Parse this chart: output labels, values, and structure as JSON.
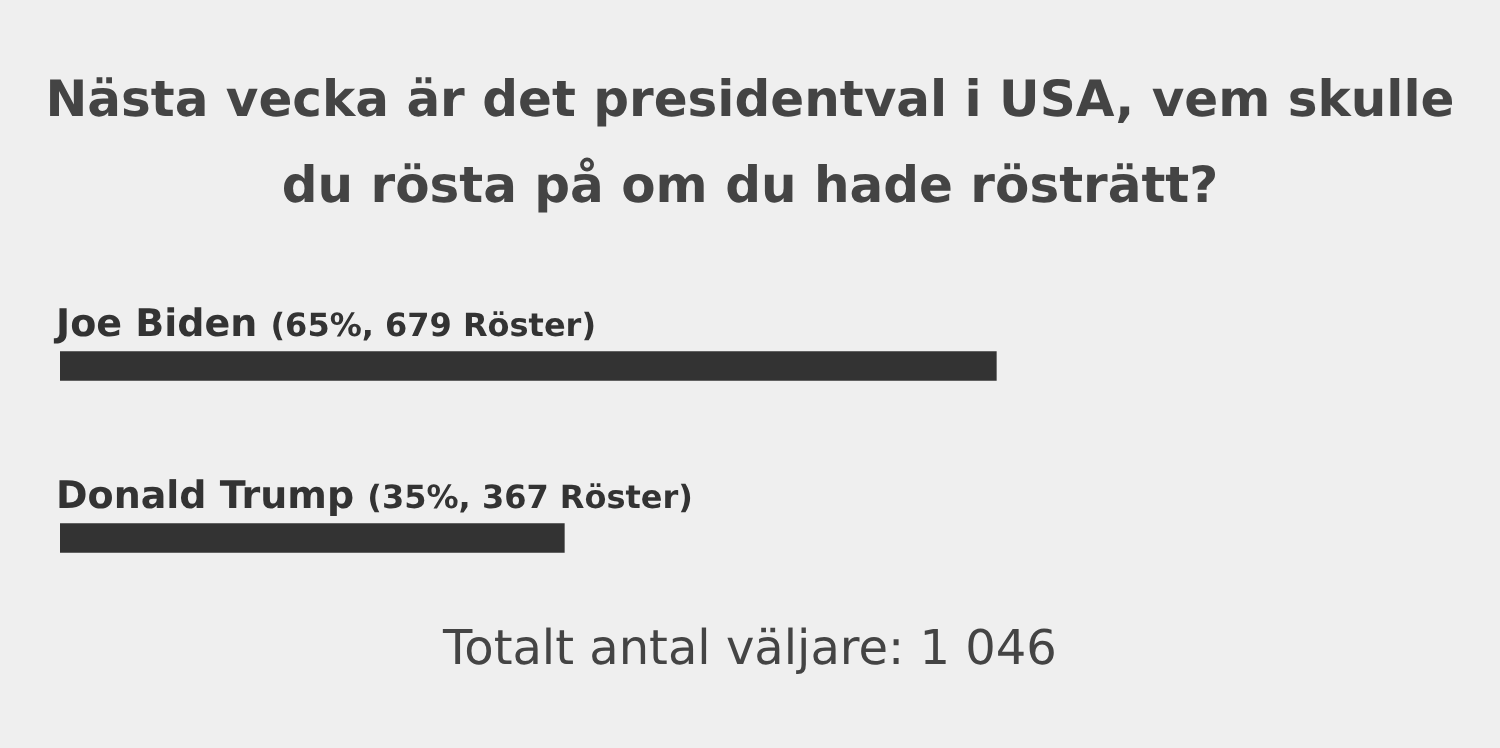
{
  "chart_data": {
    "type": "bar",
    "orientation": "horizontal",
    "title": "Nästa vecka är det presidentval i USA, vem skulle du rösta på om du hade rösträtt?",
    "categories": [
      "Joe Biden",
      "Donald Trump"
    ],
    "values": [
      65,
      35
    ],
    "value_labels": [
      "(65%, 679 Röster)",
      "(35%, 367 Röster)"
    ],
    "color": "#333333",
    "xlim": [
      0,
      100
    ],
    "tick_labels": false,
    "legend": false,
    "annotations": [
      "Totalt antal väljare: 1 046"
    ]
  }
}
